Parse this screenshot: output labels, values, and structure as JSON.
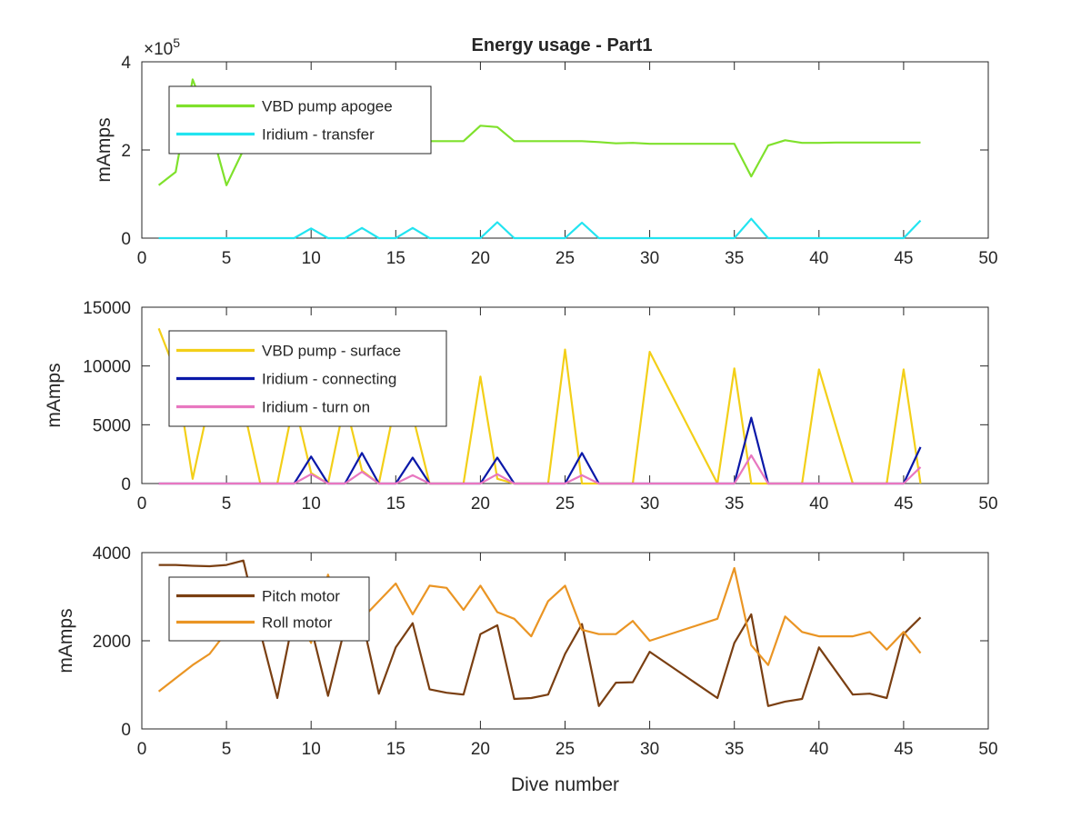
{
  "colors": {
    "vbd_apogee": "#7fe12c",
    "iridium_transfer": "#22e4f0",
    "vbd_surface": "#f3cf18",
    "iridium_connecting": "#0a18a8",
    "iridium_turn_on": "#e877c0",
    "pitch_motor": "#7a3f12",
    "roll_motor": "#ea9524"
  },
  "chart_data": [
    {
      "type": "line",
      "title": "Energy usage - Part1",
      "ylabel": "mAmps",
      "xlabel": "",
      "y_exponent": "×10",
      "y_exponent_power": "5",
      "xlim": [
        0,
        50
      ],
      "ylim": [
        0,
        4
      ],
      "xticks": [
        0,
        5,
        10,
        15,
        20,
        25,
        30,
        35,
        40,
        45,
        50
      ],
      "yticks": [
        0,
        2,
        4
      ],
      "legend_position": "top-left",
      "series": [
        {
          "name": "VBD pump apogee",
          "color_key": "vbd_apogee",
          "points": [
            [
              1,
              1.2
            ],
            [
              2,
              1.5
            ],
            [
              3,
              3.6
            ],
            [
              4,
              2.6
            ],
            [
              5,
              1.2
            ],
            [
              6,
              2.0
            ],
            [
              7,
              2.2
            ],
            [
              8,
              2.2
            ],
            [
              9,
              2.2
            ],
            [
              10,
              2.2
            ],
            [
              11,
              2.2
            ],
            [
              12,
              2.2
            ],
            [
              13,
              2.2
            ],
            [
              14,
              2.2
            ],
            [
              15,
              2.2
            ],
            [
              16,
              2.2
            ],
            [
              17,
              2.2
            ],
            [
              18,
              2.2
            ],
            [
              19,
              2.2
            ],
            [
              20,
              2.55
            ],
            [
              21,
              2.52
            ],
            [
              22,
              2.2
            ],
            [
              23,
              2.2
            ],
            [
              24,
              2.2
            ],
            [
              25,
              2.2
            ],
            [
              26,
              2.2
            ],
            [
              27,
              2.18
            ],
            [
              28,
              2.15
            ],
            [
              29,
              2.16
            ],
            [
              30,
              2.14
            ],
            [
              31,
              2.14
            ],
            [
              32,
              2.14
            ],
            [
              33,
              2.14
            ],
            [
              34,
              2.14
            ],
            [
              35,
              2.14
            ],
            [
              36,
              1.4
            ],
            [
              37,
              2.1
            ],
            [
              38,
              2.22
            ],
            [
              39,
              2.16
            ],
            [
              40,
              2.16
            ],
            [
              41,
              2.17
            ],
            [
              42,
              2.17
            ],
            [
              43,
              2.17
            ],
            [
              44,
              2.17
            ],
            [
              45,
              2.17
            ],
            [
              46,
              2.17
            ]
          ]
        },
        {
          "name": "Iridium - transfer",
          "color_key": "iridium_transfer",
          "points": [
            [
              1,
              0
            ],
            [
              9,
              0
            ],
            [
              10,
              0.22
            ],
            [
              11,
              0
            ],
            [
              12,
              0
            ],
            [
              13,
              0.23
            ],
            [
              14,
              0
            ],
            [
              15,
              0
            ],
            [
              16,
              0.23
            ],
            [
              17,
              0
            ],
            [
              20,
              0
            ],
            [
              21,
              0.36
            ],
            [
              22,
              0
            ],
            [
              25,
              0
            ],
            [
              26,
              0.35
            ],
            [
              27,
              0
            ],
            [
              35,
              0
            ],
            [
              36,
              0.44
            ],
            [
              37,
              0
            ],
            [
              45,
              0
            ],
            [
              46,
              0.4
            ]
          ]
        }
      ]
    },
    {
      "type": "line",
      "title": "",
      "ylabel": "mAmps",
      "xlabel": "",
      "xlim": [
        0,
        50
      ],
      "ylim": [
        0,
        15000
      ],
      "xticks": [
        0,
        5,
        10,
        15,
        20,
        25,
        30,
        35,
        40,
        45,
        50
      ],
      "yticks": [
        0,
        5000,
        10000,
        15000
      ],
      "legend_position": "top-left",
      "series": [
        {
          "name": "VBD pump - surface",
          "color_key": "vbd_surface",
          "points": [
            [
              1,
              13200
            ],
            [
              2,
              9500
            ],
            [
              3,
              400
            ],
            [
              4,
              7000
            ],
            [
              5,
              6500
            ],
            [
              6,
              6500
            ],
            [
              7,
              0
            ],
            [
              8,
              0
            ],
            [
              9,
              7000
            ],
            [
              10,
              900
            ],
            [
              11,
              0
            ],
            [
              12,
              7000
            ],
            [
              13,
              1100
            ],
            [
              14,
              0
            ],
            [
              15,
              7000
            ],
            [
              16,
              5800
            ],
            [
              17,
              0
            ],
            [
              19,
              0
            ],
            [
              20,
              9100
            ],
            [
              21,
              400
            ],
            [
              22,
              0
            ],
            [
              24,
              0
            ],
            [
              25,
              11400
            ],
            [
              26,
              0
            ],
            [
              27,
              0
            ],
            [
              29,
              0
            ],
            [
              30,
              11200
            ],
            [
              34,
              0
            ],
            [
              35,
              9800
            ],
            [
              36,
              0
            ],
            [
              37,
              0
            ],
            [
              39,
              0
            ],
            [
              40,
              9700
            ],
            [
              42,
              0
            ],
            [
              44,
              0
            ],
            [
              45,
              9700
            ],
            [
              46,
              0
            ]
          ]
        },
        {
          "name": "Iridium - connecting",
          "color_key": "iridium_connecting",
          "points": [
            [
              1,
              0
            ],
            [
              9,
              0
            ],
            [
              10,
              2300
            ],
            [
              11,
              0
            ],
            [
              12,
              0
            ],
            [
              13,
              2600
            ],
            [
              14,
              0
            ],
            [
              15,
              0
            ],
            [
              16,
              2200
            ],
            [
              17,
              0
            ],
            [
              20,
              0
            ],
            [
              21,
              2200
            ],
            [
              22,
              0
            ],
            [
              25,
              0
            ],
            [
              26,
              2600
            ],
            [
              27,
              0
            ],
            [
              35,
              0
            ],
            [
              36,
              5600
            ],
            [
              37,
              0
            ],
            [
              45,
              0
            ],
            [
              46,
              3100
            ]
          ]
        },
        {
          "name": "Iridium - turn on",
          "color_key": "iridium_turn_on",
          "points": [
            [
              1,
              0
            ],
            [
              9,
              0
            ],
            [
              10,
              800
            ],
            [
              11,
              0
            ],
            [
              12,
              0
            ],
            [
              13,
              1000
            ],
            [
              14,
              0
            ],
            [
              15,
              0
            ],
            [
              16,
              700
            ],
            [
              17,
              0
            ],
            [
              20,
              0
            ],
            [
              21,
              800
            ],
            [
              22,
              0
            ],
            [
              25,
              0
            ],
            [
              26,
              700
            ],
            [
              27,
              0
            ],
            [
              35,
              0
            ],
            [
              36,
              2400
            ],
            [
              37,
              0
            ],
            [
              45,
              0
            ],
            [
              46,
              1400
            ]
          ]
        }
      ]
    },
    {
      "type": "line",
      "title": "",
      "ylabel": "mAmps",
      "xlabel": "Dive number",
      "xlim": [
        0,
        50
      ],
      "ylim": [
        0,
        4000
      ],
      "xticks": [
        0,
        5,
        10,
        15,
        20,
        25,
        30,
        35,
        40,
        45,
        50
      ],
      "yticks": [
        0,
        2000,
        4000
      ],
      "legend_position": "top-left",
      "series": [
        {
          "name": "Pitch motor",
          "color_key": "pitch_motor",
          "points": [
            [
              1,
              3720
            ],
            [
              2,
              3720
            ],
            [
              3,
              3700
            ],
            [
              4,
              3690
            ],
            [
              5,
              3720
            ],
            [
              6,
              3820
            ],
            [
              7,
              2200
            ],
            [
              8,
              700
            ],
            [
              9,
              2600
            ],
            [
              10,
              2300
            ],
            [
              11,
              750
            ],
            [
              12,
              2300
            ],
            [
              13,
              2500
            ],
            [
              14,
              800
            ],
            [
              15,
              1850
            ],
            [
              16,
              2400
            ],
            [
              17,
              900
            ],
            [
              18,
              820
            ],
            [
              19,
              780
            ],
            [
              20,
              2150
            ],
            [
              21,
              2350
            ],
            [
              22,
              680
            ],
            [
              23,
              700
            ],
            [
              24,
              780
            ],
            [
              25,
              1700
            ],
            [
              26,
              2380
            ],
            [
              27,
              520
            ],
            [
              28,
              1050
            ],
            [
              29,
              1060
            ],
            [
              30,
              1750
            ],
            [
              34,
              700
            ],
            [
              35,
              1950
            ],
            [
              36,
              2600
            ],
            [
              37,
              520
            ],
            [
              38,
              620
            ],
            [
              39,
              680
            ],
            [
              40,
              1850
            ],
            [
              42,
              780
            ],
            [
              43,
              800
            ],
            [
              44,
              700
            ],
            [
              45,
              2150
            ],
            [
              46,
              2530
            ]
          ]
        },
        {
          "name": "Roll motor",
          "color_key": "roll_motor",
          "points": [
            [
              1,
              850
            ],
            [
              2,
              1150
            ],
            [
              3,
              1450
            ],
            [
              4,
              1700
            ],
            [
              5,
              2200
            ],
            [
              6,
              2300
            ],
            [
              7,
              2400
            ],
            [
              8,
              2600
            ],
            [
              9,
              2700
            ],
            [
              10,
              1950
            ],
            [
              11,
              3500
            ],
            [
              12,
              2200
            ],
            [
              13,
              2500
            ],
            [
              14,
              2900
            ],
            [
              15,
              3300
            ],
            [
              16,
              2600
            ],
            [
              17,
              3250
            ],
            [
              18,
              3200
            ],
            [
              19,
              2700
            ],
            [
              20,
              3250
            ],
            [
              21,
              2650
            ],
            [
              22,
              2500
            ],
            [
              23,
              2100
            ],
            [
              24,
              2900
            ],
            [
              25,
              3250
            ],
            [
              26,
              2250
            ],
            [
              27,
              2150
            ],
            [
              28,
              2150
            ],
            [
              29,
              2450
            ],
            [
              30,
              2000
            ],
            [
              34,
              2500
            ],
            [
              35,
              3650
            ],
            [
              36,
              1900
            ],
            [
              37,
              1450
            ],
            [
              38,
              2550
            ],
            [
              39,
              2200
            ],
            [
              40,
              2100
            ],
            [
              42,
              2100
            ],
            [
              43,
              2200
            ],
            [
              44,
              1800
            ],
            [
              45,
              2200
            ],
            [
              46,
              1720
            ]
          ]
        }
      ]
    }
  ]
}
